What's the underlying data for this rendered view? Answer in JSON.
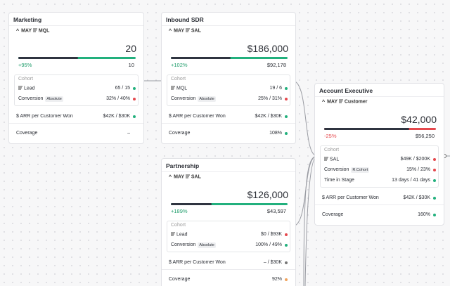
{
  "cards": [
    {
      "title": "Marketing",
      "period": "MAY",
      "stage": "MQL",
      "amount": "20",
      "change": "+95%",
      "change_color": "#1f9d6b",
      "target": "10",
      "bar_color": "#22b07d",
      "cohort_label": "Cohort",
      "cohort": [
        {
          "label": "Lead",
          "value": "65 / 15",
          "status": "#22b07d"
        },
        {
          "label": "Conversion",
          "badge": "Absolute",
          "value": "32% / 40%",
          "status": "#e5484d"
        }
      ],
      "metrics": [
        {
          "label": "$ ARR per Customer Won",
          "value": "$42K / $30K",
          "status": "#22b07d"
        },
        {
          "label": "Coverage",
          "value": "–"
        }
      ]
    },
    {
      "title": "Inbound SDR",
      "period": "MAY",
      "stage": "SAL",
      "amount": "$186,000",
      "change": "+102%",
      "change_color": "#1f9d6b",
      "target": "$92,178",
      "bar_color": "#22b07d",
      "cohort_label": "Cohort",
      "cohort": [
        {
          "label": "MQL",
          "value": "19 / 6",
          "status": "#22b07d"
        },
        {
          "label": "Conversion",
          "badge": "Absolute",
          "value": "25% / 31%",
          "status": "#e5484d"
        }
      ],
      "metrics": [
        {
          "label": "$ ARR per Customer Won",
          "value": "$42K / $30K",
          "status": "#22b07d"
        },
        {
          "label": "Coverage",
          "value": "108%",
          "status": "#22b07d"
        }
      ]
    },
    {
      "title": "Partnership",
      "period": "MAY",
      "stage": "SAL",
      "amount": "$126,000",
      "change": "+189%",
      "change_color": "#1f9d6b",
      "target": "$43,597",
      "bar_color": "#22b07d",
      "cohort_label": "Cohort",
      "cohort": [
        {
          "label": "Lead",
          "value": "$0 / $93K",
          "status": "#e5484d"
        },
        {
          "label": "Conversion",
          "badge": "Absolute",
          "value": "100% / 49%",
          "status": "#22b07d"
        }
      ],
      "metrics": [
        {
          "label": "$ ARR per Customer Won",
          "value": "– / $30K",
          "status": "#777777"
        },
        {
          "label": "Coverage",
          "value": "92%",
          "status": "#f0a35e"
        }
      ]
    },
    {
      "title": "Account Executive",
      "period": "MAY",
      "stage": "Customer",
      "amount": "$42,000",
      "change": "-25%",
      "change_color": "#e5484d",
      "target": "$56,250",
      "bar_color": "#e5484d",
      "cohort_label": "Cohort",
      "cohort": [
        {
          "label": "SAL",
          "value": "$49K / $200K",
          "status": "#e5484d"
        },
        {
          "label": "Conversion",
          "badge": "R.Cohort",
          "value": "15% / 23%",
          "status": "#e5484d"
        },
        {
          "label": "Time in Stage",
          "value": "13 days / 41 days",
          "status": "#22b07d"
        }
      ],
      "metrics": [
        {
          "label": "$ ARR per Customer Won",
          "value": "$42K / $30K",
          "status": "#22b07d"
        },
        {
          "label": "Coverage",
          "value": "160%",
          "status": "#22b07d"
        }
      ]
    }
  ]
}
